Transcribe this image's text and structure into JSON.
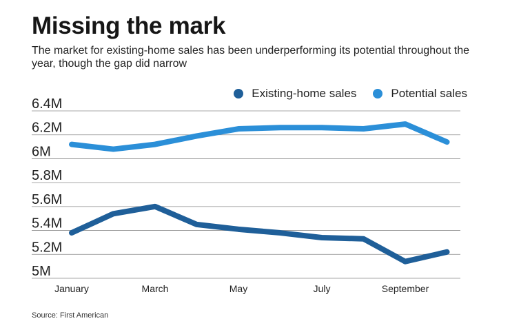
{
  "title": "Missing the mark",
  "subtitle": "The market for existing-home sales has been underperforming its potential throughout the year, though the gap did narrow",
  "source": "Source: First American",
  "colors": {
    "existing": "#1f5f99",
    "potential": "#2b8fd8",
    "grid": "#8a8a8a",
    "text": "#222222"
  },
  "chart_data": {
    "type": "line",
    "title": "Missing the mark",
    "x": [
      "January",
      "February",
      "March",
      "April",
      "May",
      "June",
      "July",
      "August",
      "September",
      "October"
    ],
    "x_tick_labels": [
      "January",
      "",
      "March",
      "",
      "May",
      "",
      "July",
      "",
      "September",
      ""
    ],
    "y_ticks": [
      5000000,
      5200000,
      5400000,
      5600000,
      5800000,
      6000000,
      6200000,
      6400000
    ],
    "y_tick_labels": [
      "5M",
      "5.2M",
      "5.4M",
      "5.6M",
      "5.8M",
      "6M",
      "6.2M",
      "6.4M"
    ],
    "ylim": [
      5000000,
      6400000
    ],
    "grid": true,
    "legend": "top-right",
    "series": [
      {
        "name": "Existing-home sales",
        "color": "#1f5f99",
        "values": [
          5380000,
          5540000,
          5600000,
          5450000,
          5410000,
          5380000,
          5340000,
          5330000,
          5140000,
          5220000
        ]
      },
      {
        "name": "Potential sales",
        "color": "#2b8fd8",
        "values": [
          6120000,
          6080000,
          6120000,
          6190000,
          6250000,
          6260000,
          6260000,
          6250000,
          6290000,
          6140000
        ]
      }
    ]
  }
}
